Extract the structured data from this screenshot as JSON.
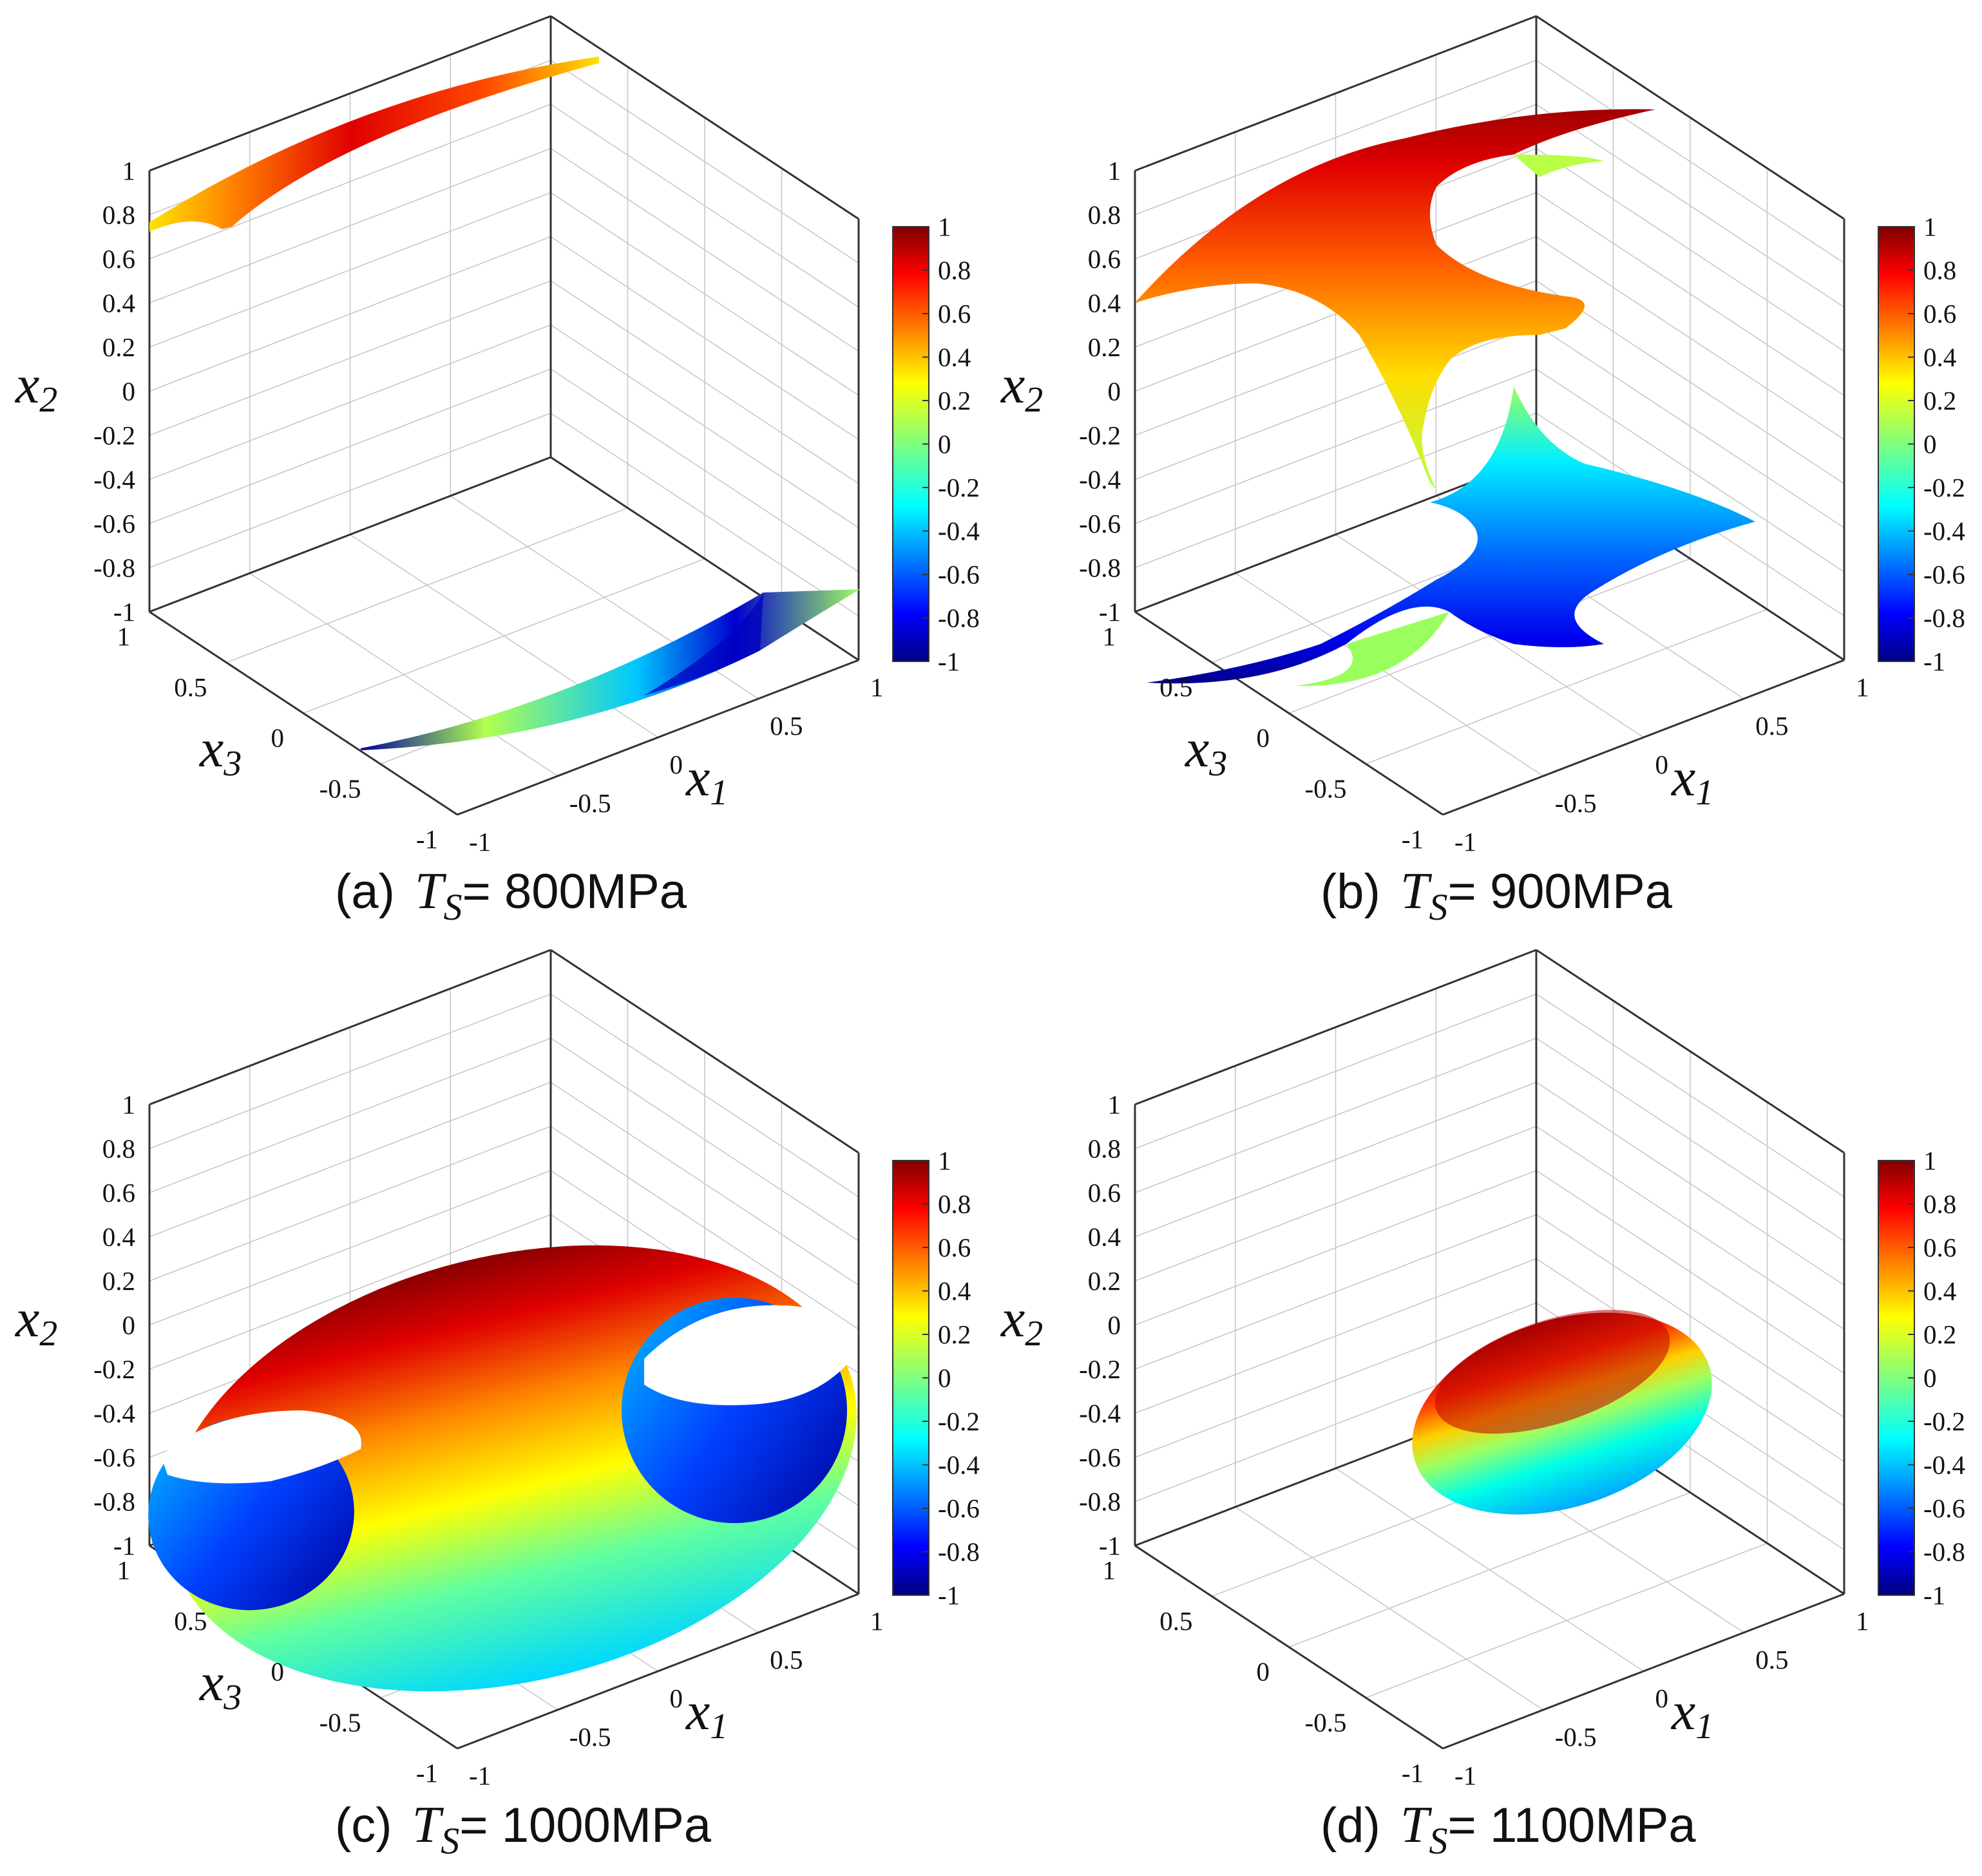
{
  "chart_data": [
    {
      "type": "surface3d",
      "label": "(a)",
      "caption_symbol": "T",
      "caption_subscript": "S",
      "caption_value": "= 800MPa",
      "surface_shape": "two thin arcs near x2 = 0.7 to 1 (top) and x2 = -1 (bottom)",
      "xlabel": "x",
      "xlabel_sub": "1",
      "ylabel": "x",
      "ylabel_sub": "2",
      "zlabel": "x",
      "zlabel_sub": "3",
      "x1_ticks": [
        "-1",
        "-0.5",
        "0",
        "0.5",
        "1"
      ],
      "x3_ticks": [
        "-1",
        "-0.5",
        "0",
        "0.5",
        "1"
      ],
      "x2_ticks": [
        "-1",
        "-0.8",
        "-0.6",
        "-0.4",
        "-0.2",
        "0",
        "0.2",
        "0.4",
        "0.6",
        "0.8",
        "1"
      ],
      "colorbar_ticks": [
        "-1",
        "-0.8",
        "-0.6",
        "-0.4",
        "-0.2",
        "0",
        "0.2",
        "0.4",
        "0.6",
        "0.8",
        "1"
      ],
      "colorbar_range": [
        -1,
        1
      ],
      "x1_range": [
        -1,
        1
      ],
      "x2_range": [
        -1,
        1
      ],
      "x3_range": [
        -1,
        1
      ]
    },
    {
      "type": "surface3d",
      "label": "(b)",
      "caption_symbol": "T",
      "caption_subscript": "S",
      "caption_value": "= 900MPa",
      "surface_shape": "two saddle-shaped sheets, upper (x2 0 to 1) and lower (x2 -1 to 0)",
      "xlabel": "x",
      "xlabel_sub": "1",
      "ylabel": "x",
      "ylabel_sub": "2",
      "zlabel": "x",
      "zlabel_sub": "3",
      "x1_ticks": [
        "-1",
        "-0.5",
        "0",
        "0.5",
        "1"
      ],
      "x3_ticks": [
        "-1",
        "-0.5",
        "0",
        "0.5",
        "1"
      ],
      "x2_ticks": [
        "-1",
        "-0.8",
        "-0.6",
        "-0.4",
        "-0.2",
        "0",
        "0.2",
        "0.4",
        "0.6",
        "0.8",
        "1"
      ],
      "colorbar_ticks": [
        "-1",
        "-0.8",
        "-0.6",
        "-0.4",
        "-0.2",
        "0",
        "0.2",
        "0.4",
        "0.6",
        "0.8",
        "1"
      ],
      "colorbar_range": [
        -1,
        1
      ],
      "x1_range": [
        -1,
        1
      ],
      "x2_range": [
        -1,
        1
      ],
      "x3_range": [
        -1,
        1
      ]
    },
    {
      "type": "surface3d",
      "label": "(c)",
      "caption_symbol": "T",
      "caption_subscript": "S",
      "caption_value": "= 1000MPa",
      "surface_shape": "ellipsoidal shell with two elliptical openings",
      "xlabel": "x",
      "xlabel_sub": "1",
      "ylabel": "x",
      "ylabel_sub": "2",
      "zlabel": "x",
      "zlabel_sub": "3",
      "x1_ticks": [
        "-1",
        "-0.5",
        "0",
        "0.5",
        "1"
      ],
      "x3_ticks": [
        "-1",
        "-0.5",
        "0",
        "0.5",
        "1"
      ],
      "x2_ticks": [
        "-1",
        "-0.8",
        "-0.6",
        "-0.4",
        "-0.2",
        "0",
        "0.2",
        "0.4",
        "0.6",
        "0.8",
        "1"
      ],
      "colorbar_ticks": [
        "-1",
        "-0.8",
        "-0.6",
        "-0.4",
        "-0.2",
        "0",
        "0.2",
        "0.4",
        "0.6",
        "0.8",
        "1"
      ],
      "colorbar_range": [
        -1,
        1
      ],
      "x1_range": [
        -1,
        1
      ],
      "x2_range": [
        -1,
        1
      ],
      "x3_range": [
        -1,
        1
      ]
    },
    {
      "type": "surface3d",
      "label": "(d)",
      "caption_symbol": "T",
      "caption_subscript": "S",
      "caption_value": "= 1100MPa",
      "surface_shape": "small closed ellipsoid spanning roughly x2 -0.4 to 0.4",
      "xlabel": "x",
      "xlabel_sub": "1",
      "ylabel": "x",
      "ylabel_sub": "2",
      "zlabel": "",
      "zlabel_sub": "",
      "x1_ticks": [
        "-1",
        "-0.5",
        "0",
        "0.5",
        "1"
      ],
      "x3_ticks": [
        "-1",
        "-0.5",
        "0",
        "0.5",
        "1"
      ],
      "x2_ticks": [
        "-1",
        "-0.8",
        "-0.6",
        "-0.4",
        "-0.2",
        "0",
        "0.2",
        "0.4",
        "0.6",
        "0.8",
        "1"
      ],
      "colorbar_ticks": [
        "-1",
        "-0.8",
        "-0.6",
        "-0.4",
        "-0.2",
        "0",
        "0.2",
        "0.4",
        "0.6",
        "0.8",
        "1"
      ],
      "colorbar_range": [
        -1,
        1
      ],
      "x1_range": [
        -1,
        1
      ],
      "x2_range": [
        -1,
        1
      ],
      "x3_range": [
        -1,
        1
      ]
    }
  ],
  "colormap": {
    "name": "jet",
    "stops": [
      "#00007f",
      "#0000ff",
      "#007fff",
      "#00ffff",
      "#7fff7f",
      "#ffff00",
      "#ff7f00",
      "#ff0000",
      "#7f0000"
    ]
  }
}
